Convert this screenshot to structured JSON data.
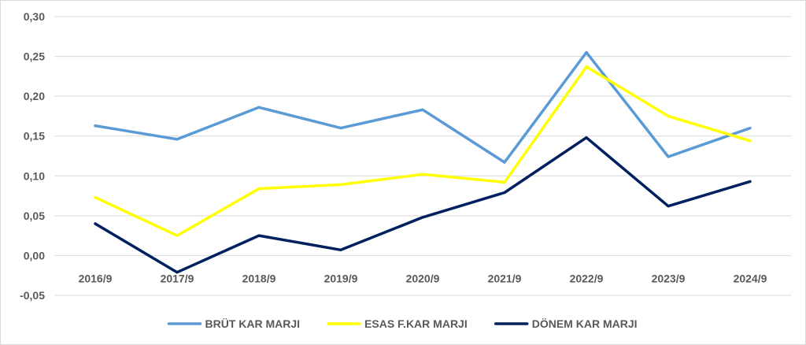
{
  "chart_data": {
    "type": "line",
    "categories": [
      "2016/9",
      "2017/9",
      "2018/9",
      "2019/9",
      "2020/9",
      "2021/9",
      "2022/9",
      "2023/9",
      "2024/9"
    ],
    "series": [
      {
        "name": "BRÜT KAR MARJI",
        "color": "#5b9bd5",
        "values": [
          0.163,
          0.146,
          0.186,
          0.16,
          0.183,
          0.117,
          0.255,
          0.124,
          0.16
        ]
      },
      {
        "name": "ESAS F.KAR MARJI",
        "color": "#ffff00",
        "values": [
          0.073,
          0.025,
          0.084,
          0.089,
          0.102,
          0.092,
          0.237,
          0.175,
          0.144
        ]
      },
      {
        "name": "DÖNEM KAR MARJI",
        "color": "#002060",
        "values": [
          0.04,
          -0.021,
          0.025,
          0.007,
          0.048,
          0.079,
          0.148,
          0.062,
          0.093
        ]
      }
    ],
    "yticks": [
      "0,30",
      "0,25",
      "0,20",
      "0,15",
      "0,10",
      "0,05",
      "0,00",
      "-0,05"
    ],
    "ylim": [
      -0.05,
      0.3
    ],
    "grid": true,
    "legend_position": "bottom"
  }
}
